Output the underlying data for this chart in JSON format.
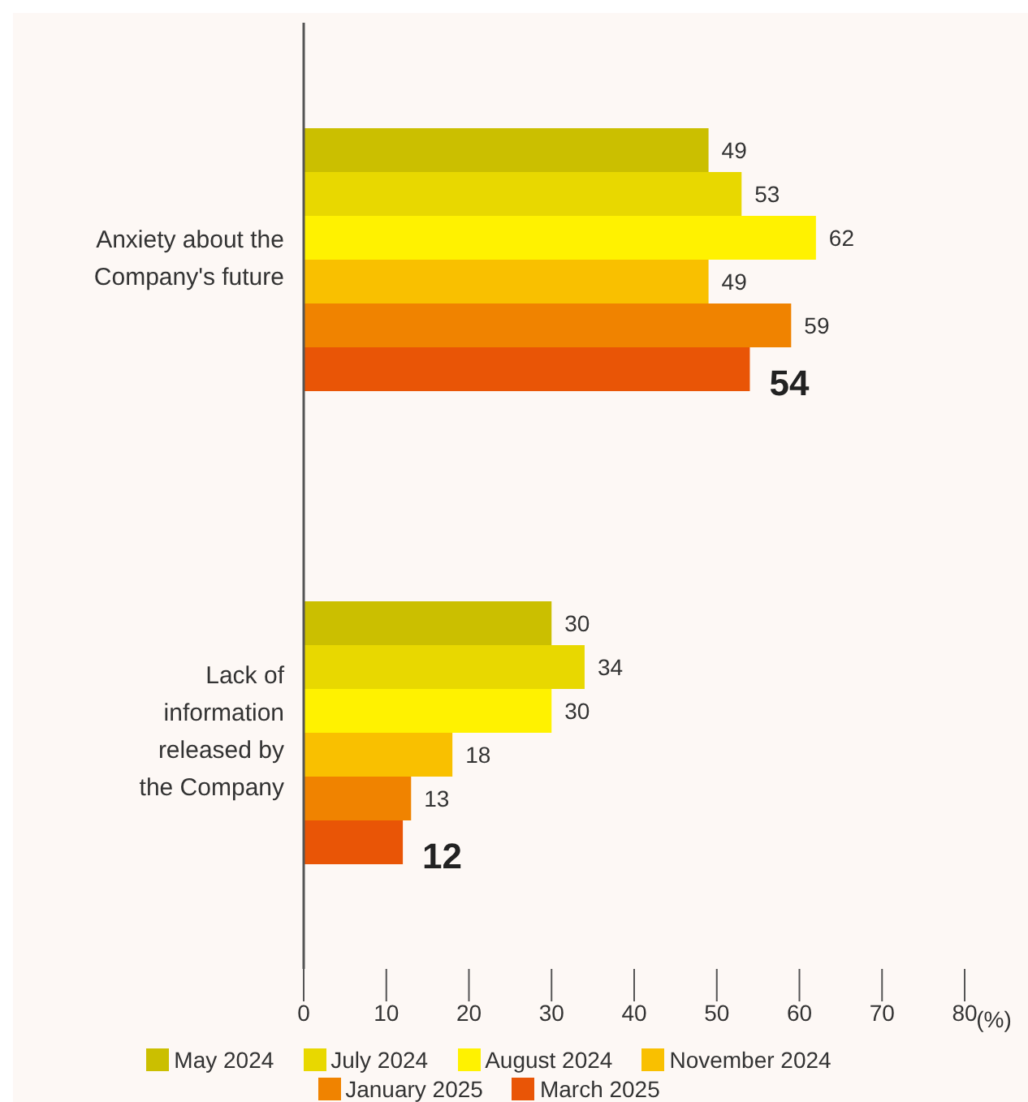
{
  "chart_data": {
    "type": "bar",
    "orientation": "horizontal",
    "categories": [
      "Anxiety about the\nCompany's future",
      "Lack of\ninformation\nreleased by\nthe Company"
    ],
    "xlabel": "(%)",
    "xlim": [
      0,
      80
    ],
    "xticks": [
      0,
      10,
      20,
      30,
      40,
      50,
      60,
      70,
      80
    ],
    "grid": false,
    "legend": "bottom",
    "data_labels": true,
    "series": [
      {
        "name": "May 2024",
        "color": "#cbbf00",
        "values": [
          49,
          30
        ]
      },
      {
        "name": "July 2024",
        "color": "#e8d800",
        "values": [
          53,
          34
        ]
      },
      {
        "name": "August 2024",
        "color": "#fff200",
        "values": [
          62,
          30
        ]
      },
      {
        "name": "November 2024",
        "color": "#f9c000",
        "values": [
          49,
          18
        ]
      },
      {
        "name": "January 2025",
        "color": "#f08300",
        "values": [
          59,
          13
        ]
      },
      {
        "name": "March 2025",
        "color": "#e95506",
        "values": [
          54,
          12
        ]
      }
    ]
  }
}
